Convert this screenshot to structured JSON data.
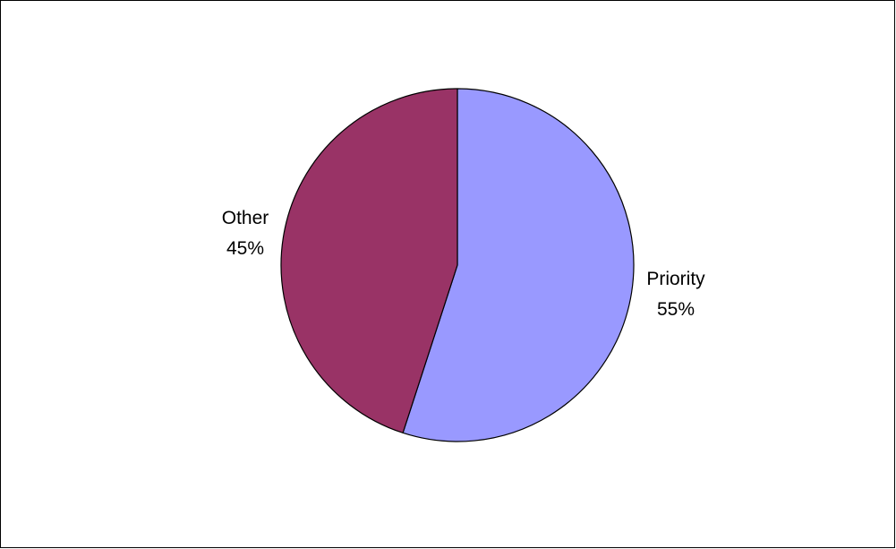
{
  "chart_data": {
    "type": "pie",
    "title": "",
    "slices": [
      {
        "label": "Priority",
        "value": 55,
        "value_label": "55%",
        "color": "#9999ff"
      },
      {
        "label": "Other",
        "value": 45,
        "value_label": "45%",
        "color": "#993366"
      }
    ],
    "start": "12 o'clock",
    "direction": "clockwise",
    "legend": "none"
  }
}
